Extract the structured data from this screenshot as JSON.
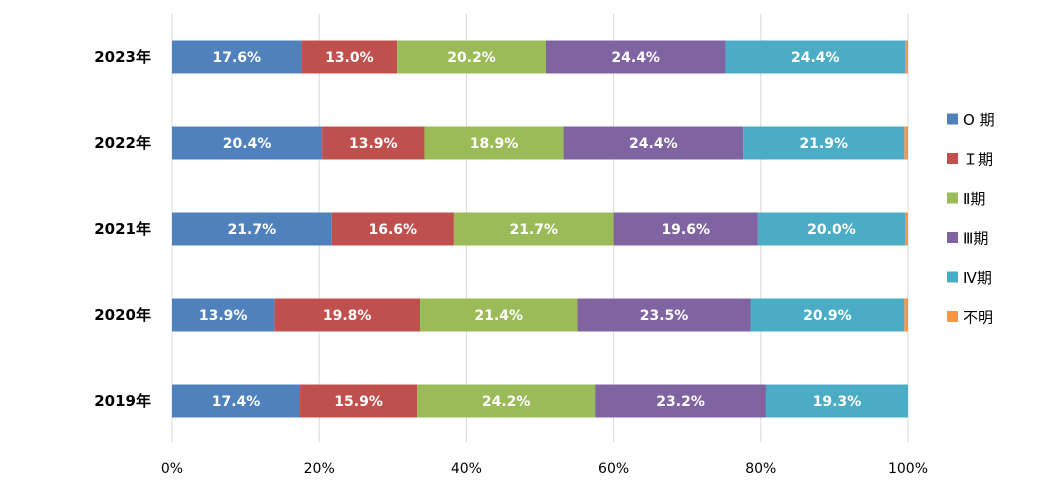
{
  "chart_data": {
    "type": "bar",
    "orientation": "horizontal",
    "stacked": "percent",
    "categories": [
      "2023年",
      "2022年",
      "2021年",
      "2020年",
      "2019年"
    ],
    "series": [
      {
        "name": "O 期",
        "color": "#4f81bd",
        "values": [
          17.6,
          20.4,
          21.7,
          13.9,
          17.4
        ],
        "labels": [
          "17.6%",
          "20.4%",
          "21.7%",
          "13.9%",
          "17.4%"
        ]
      },
      {
        "name": "Ｉ期",
        "color": "#c0504d",
        "values": [
          13.0,
          13.9,
          16.6,
          19.8,
          15.9
        ],
        "labels": [
          "13.0%",
          "13.9%",
          "16.6%",
          "19.8%",
          "15.9%"
        ]
      },
      {
        "name": "Ⅱ期",
        "color": "#9bbb59",
        "values": [
          20.2,
          18.9,
          21.7,
          21.4,
          24.2
        ],
        "labels": [
          "20.2%",
          "18.9%",
          "21.7%",
          "21.4%",
          "24.2%"
        ]
      },
      {
        "name": "Ⅲ期",
        "color": "#8064a2",
        "values": [
          24.4,
          24.4,
          19.6,
          23.5,
          23.2
        ],
        "labels": [
          "24.4%",
          "24.4%",
          "19.6%",
          "23.5%",
          "23.2%"
        ]
      },
      {
        "name": "Ⅳ期",
        "color": "#4bacc6",
        "values": [
          24.4,
          21.9,
          20.0,
          20.9,
          19.3
        ],
        "labels": [
          "24.4%",
          "21.9%",
          "20.0%",
          "20.9%",
          "19.3%"
        ]
      },
      {
        "name": "不明",
        "color": "#f79646",
        "values": [
          0.4,
          0.5,
          0.4,
          0.5,
          0.0
        ],
        "labels": [
          "",
          "",
          "",
          "",
          ""
        ]
      }
    ],
    "x_ticks": [
      "0%",
      "20%",
      "40%",
      "60%",
      "80%",
      "100%"
    ],
    "xlim": [
      0,
      100
    ],
    "grid": true,
    "legend_position": "right",
    "title": "",
    "xlabel": "",
    "ylabel": ""
  }
}
